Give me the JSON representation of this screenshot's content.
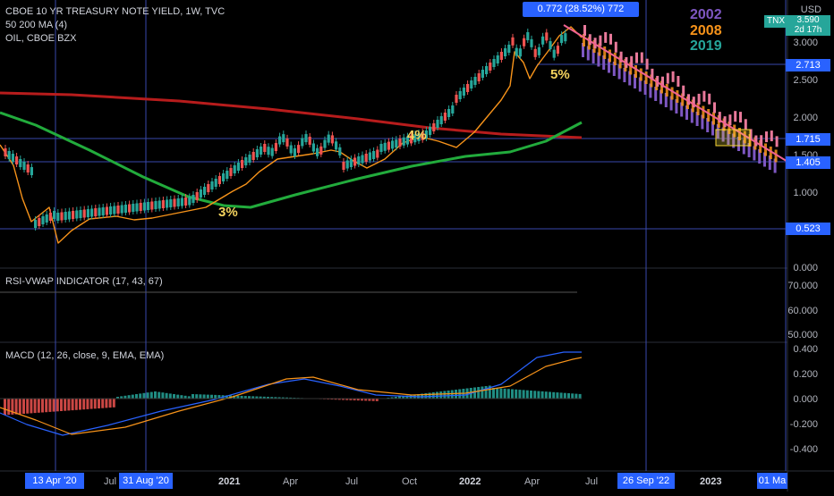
{
  "chart_header": {
    "title": "CBOE 10 YR TREASURY NOTE YIELD, 1W, TVC",
    "ma_label": "50 200 MA (4)",
    "overlay_label": "OIL, CBOE BZX"
  },
  "measure_tooltip": "0.772 (28.52%) 772",
  "year_legend": [
    {
      "label": "2002",
      "color": "#7e57c2"
    },
    {
      "label": "2008",
      "color": "#f7931a"
    },
    {
      "label": "2019",
      "color": "#26a69a"
    }
  ],
  "annotations": {
    "pct3": "3%",
    "pct4": "4%",
    "pct5": "5%"
  },
  "price_axis": {
    "currency": "USD",
    "ticks": [
      "3.000",
      "2.500",
      "2.000",
      "1.500",
      "1.000",
      "0.000"
    ],
    "symbol_tag": "TNX",
    "top_price": "3.590",
    "countdown": "2d 17h",
    "levels": [
      "2.713",
      "1.715",
      "1.405",
      "0.523"
    ]
  },
  "rsi_pane": {
    "label": "RSI-VWAP INDICATOR (17, 43, 67)",
    "ticks": [
      "70.000",
      "60.000",
      "50.000"
    ]
  },
  "macd_pane": {
    "label": "MACD (12, 26, close, 9, EMA, EMA)",
    "ticks": [
      "0.400",
      "0.200",
      "0.000",
      "-0.200",
      "-0.400"
    ]
  },
  "time_axis": {
    "labels": [
      "Jul",
      "2021",
      "Apr",
      "Jul",
      "Oct",
      "2022",
      "Apr",
      "Jul",
      "2023"
    ],
    "bold": [
      "2021",
      "2022",
      "2023"
    ],
    "highlighted": [
      "13 Apr '20",
      "31 Aug '20",
      "26 Sep '22",
      "01 Ma"
    ]
  },
  "colors": {
    "up": "#26a69a",
    "down": "#ef5350",
    "ma50": "#22ab3c",
    "ma200": "#b71c1c",
    "oil": "#f7931a",
    "accent": "#2962ff"
  }
}
